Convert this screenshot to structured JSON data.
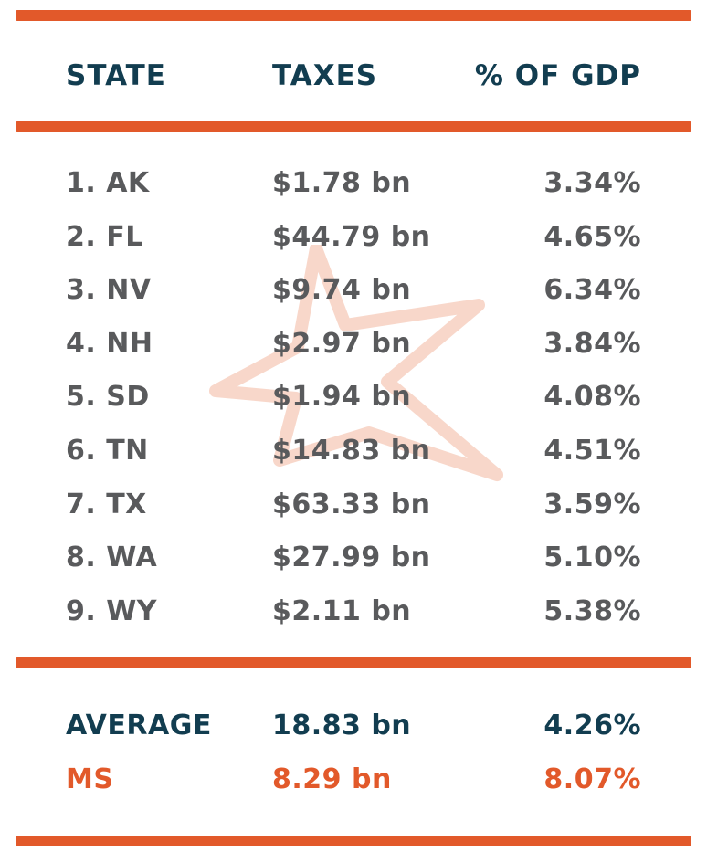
{
  "colors": {
    "accent": "#e2592a",
    "header": "#123d50",
    "body_text": "#595a5c",
    "watermark": "#f5c9b8"
  },
  "header": {
    "state": "STATE",
    "taxes": "TAXES",
    "pct": "% OF GDP"
  },
  "rows": [
    {
      "state": "1. AK",
      "taxes": "$1.78 bn",
      "pct": "3.34%"
    },
    {
      "state": "2. FL",
      "taxes": "$44.79 bn",
      "pct": "4.65%"
    },
    {
      "state": "3. NV",
      "taxes": "$9.74 bn",
      "pct": "6.34%"
    },
    {
      "state": "4. NH",
      "taxes": "$2.97 bn",
      "pct": "3.84%"
    },
    {
      "state": "5. SD",
      "taxes": "$1.94 bn",
      "pct": "4.08%"
    },
    {
      "state": "6. TN",
      "taxes": "$14.83 bn",
      "pct": "4.51%"
    },
    {
      "state": "7. TX",
      "taxes": "$63.33 bn",
      "pct": "3.59%"
    },
    {
      "state": "8. WA",
      "taxes": "$27.99 bn",
      "pct": "5.10%"
    },
    {
      "state": "9. WY",
      "taxes": "$2.11 bn",
      "pct": "5.38%"
    }
  ],
  "average": {
    "state": "AVERAGE",
    "taxes": "18.83 bn",
    "pct": "4.26%"
  },
  "ms": {
    "state": "MS",
    "taxes": "8.29 bn",
    "pct": "8.07%"
  },
  "chart_data": {
    "type": "table",
    "columns": [
      "STATE",
      "TAXES",
      "% OF GDP"
    ],
    "rows": [
      [
        "1. AK",
        "$1.78 bn",
        "3.34%"
      ],
      [
        "2. FL",
        "$44.79 bn",
        "4.65%"
      ],
      [
        "3. NV",
        "$9.74 bn",
        "6.34%"
      ],
      [
        "4. NH",
        "$2.97 bn",
        "3.84%"
      ],
      [
        "5. SD",
        "$1.94 bn",
        "4.08%"
      ],
      [
        "6. TN",
        "$14.83 bn",
        "4.51%"
      ],
      [
        "7. TX",
        "$63.33 bn",
        "3.59%"
      ],
      [
        "8. WA",
        "$27.99 bn",
        "5.10%"
      ],
      [
        "9. WY",
        "$2.11 bn",
        "5.38%"
      ],
      [
        "AVERAGE",
        "18.83 bn",
        "4.26%"
      ],
      [
        "MS",
        "8.29 bn",
        "8.07%"
      ]
    ]
  }
}
